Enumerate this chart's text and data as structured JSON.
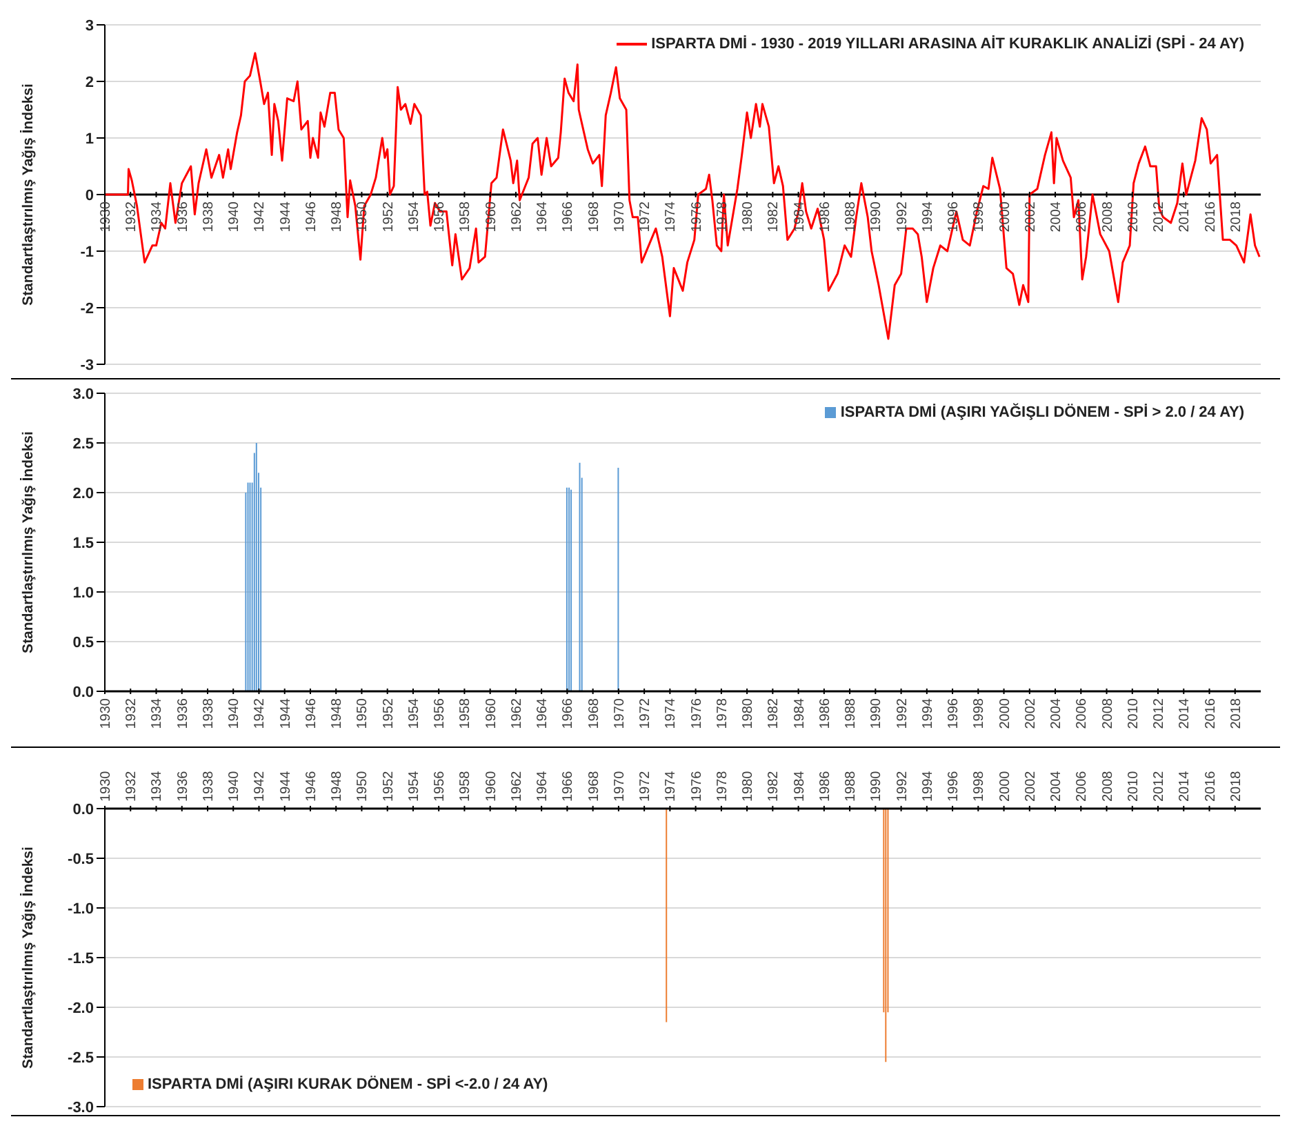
{
  "chart_data": [
    {
      "type": "line",
      "ylabel": "Standartlaştırılmış Yağış İndeksi",
      "legend": "top right",
      "grid": "y",
      "xlim": [
        1930,
        2020
      ],
      "ylim": [
        -3,
        3
      ],
      "yticks": [
        -3,
        -2,
        -1,
        0,
        1,
        2,
        3
      ],
      "xticks": [
        1930,
        1932,
        1934,
        1936,
        1938,
        1940,
        1942,
        1944,
        1946,
        1948,
        1950,
        1952,
        1954,
        1956,
        1958,
        1960,
        1962,
        1964,
        1966,
        1968,
        1970,
        1972,
        1974,
        1976,
        1978,
        1980,
        1982,
        1984,
        1986,
        1988,
        1990,
        1992,
        1994,
        1996,
        1998,
        2000,
        2002,
        2004,
        2006,
        2008,
        2010,
        2012,
        2014,
        2016,
        2018
      ],
      "series": [
        {
          "name": "ISPARTA DMİ - 1930 - 2019 YILLARI ARASINA AİT KURAKLIK ANALİZİ (SPİ - 24 AY)",
          "color": "#ff0000",
          "x": [
            1930,
            1931.8,
            1931.85,
            1932.1,
            1932.5,
            1933.1,
            1933.7,
            1934.0,
            1934.4,
            1934.7,
            1935.1,
            1935.5,
            1936.0,
            1936.7,
            1937.0,
            1937.3,
            1937.9,
            1938.3,
            1938.9,
            1939.2,
            1939.6,
            1939.8,
            1940.3,
            1940.6,
            1940.9,
            1941.3,
            1941.7,
            1942.1,
            1942.4,
            1942.7,
            1943.0,
            1943.2,
            1943.5,
            1943.8,
            1944.2,
            1944.7,
            1945.0,
            1945.3,
            1945.8,
            1946.0,
            1946.2,
            1946.6,
            1946.8,
            1947.1,
            1947.55,
            1947.9,
            1948.2,
            1948.6,
            1948.9,
            1949.1,
            1949.5,
            1949.9,
            1950.2,
            1950.7,
            1951.1,
            1951.6,
            1951.8,
            1952.0,
            1952.2,
            1952.5,
            1952.8,
            1953.05,
            1953.4,
            1953.8,
            1954.1,
            1954.6,
            1954.9,
            1955.1,
            1955.35,
            1955.7,
            1956.1,
            1956.6,
            1957.05,
            1957.3,
            1957.8,
            1958.4,
            1958.9,
            1959.1,
            1959.6,
            1960.1,
            1960.5,
            1961.0,
            1961.6,
            1961.8,
            1962.1,
            1962.3,
            1963.0,
            1963.3,
            1963.7,
            1964.0,
            1964.4,
            1964.75,
            1965.3,
            1965.5,
            1965.8,
            1966.1,
            1966.5,
            1966.8,
            1966.9,
            1967.2,
            1967.6,
            1968.0,
            1968.5,
            1968.7,
            1969.0,
            1969.4,
            1969.8,
            1970.1,
            1970.6,
            1970.85,
            1971.1,
            1971.5,
            1971.8,
            1972.9,
            1973.4,
            1974.0,
            1974.3,
            1975.0,
            1975.35,
            1975.9,
            1976.2,
            1976.8,
            1977.05,
            1977.3,
            1977.65,
            1978.0,
            1978.2,
            1978.5,
            1979.25,
            1979.6,
            1980.0,
            1980.3,
            1980.7,
            1981.0,
            1981.2,
            1981.7,
            1982.1,
            1982.45,
            1982.8,
            1983.15,
            1983.7,
            1984.0,
            1984.3,
            1984.6,
            1985.0,
            1985.5,
            1986.0,
            1986.35,
            1987.05,
            1987.6,
            1988.1,
            1988.5,
            1988.9,
            1989.4,
            1989.7,
            1990.25,
            1991.0,
            1991.5,
            1992.0,
            1992.4,
            1992.9,
            1993.3,
            1993.6,
            1994.0,
            1994.5,
            1995.05,
            1995.6,
            1996.3,
            1996.8,
            1997.35,
            1997.9,
            1998.4,
            1998.8,
            1999.1,
            1999.7,
            2000.2,
            2000.7,
            2001.2,
            2001.5,
            2001.9,
            2002.0,
            2002.6,
            2003.2,
            2003.7,
            2003.9,
            2004.1,
            2004.6,
            2005.2,
            2005.45,
            2005.8,
            2006.1,
            2006.4,
            2006.9,
            2007.5,
            2008.2,
            2008.9,
            2009.25,
            2009.8,
            2010.1,
            2010.5,
            2011.0,
            2011.4,
            2011.85,
            2012.1,
            2012.4,
            2013.0,
            2013.5,
            2013.9,
            2014.2,
            2014.9,
            2015.4,
            2015.8,
            2016.1,
            2016.6,
            2017.05,
            2017.6,
            2018.1,
            2018.7,
            2019.2,
            2019.55,
            2019.9
          ],
          "values": [
            0,
            0,
            0.45,
            0.25,
            -0.2,
            -1.2,
            -0.9,
            -0.9,
            -0.5,
            -0.6,
            0.2,
            -0.5,
            0.2,
            0.5,
            -0.35,
            0.2,
            0.8,
            0.3,
            0.7,
            0.3,
            0.8,
            0.45,
            1.1,
            1.4,
            2.0,
            2.1,
            2.5,
            2.0,
            1.6,
            1.8,
            0.7,
            1.6,
            1.3,
            0.6,
            1.7,
            1.65,
            2.0,
            1.15,
            1.3,
            0.65,
            1.0,
            0.65,
            1.45,
            1.2,
            1.8,
            1.8,
            1.15,
            1.0,
            -0.4,
            0.25,
            -0.2,
            -1.15,
            -0.2,
            0.0,
            0.3,
            1.0,
            0.65,
            0.8,
            0.0,
            0.15,
            1.9,
            1.5,
            1.6,
            1.25,
            1.6,
            1.4,
            0.0,
            0.05,
            -0.55,
            -0.15,
            -0.3,
            -0.3,
            -1.25,
            -0.7,
            -1.5,
            -1.3,
            -0.6,
            -1.2,
            -1.1,
            0.2,
            0.3,
            1.15,
            0.6,
            0.2,
            0.6,
            -0.1,
            0.3,
            0.9,
            1.0,
            0.35,
            1.0,
            0.5,
            0.65,
            1.1,
            2.05,
            1.8,
            1.65,
            2.3,
            1.5,
            1.2,
            0.8,
            0.55,
            0.7,
            0.15,
            1.4,
            1.8,
            2.25,
            1.7,
            1.5,
            -0.1,
            -0.4,
            -0.4,
            -1.2,
            -0.6,
            -1.1,
            -2.15,
            -1.3,
            -1.7,
            -1.2,
            -0.8,
            0.0,
            0.1,
            0.35,
            -0.1,
            -0.9,
            -1.0,
            0.0,
            -0.9,
            0.1,
            0.7,
            1.45,
            1.0,
            1.6,
            1.2,
            1.6,
            1.2,
            0.2,
            0.5,
            0.15,
            -0.8,
            -0.6,
            -0.3,
            0.2,
            -0.3,
            -0.6,
            -0.25,
            -0.8,
            -1.7,
            -1.4,
            -0.9,
            -1.1,
            -0.4,
            0.2,
            -0.4,
            -1.0,
            -1.6,
            -2.55,
            -1.6,
            -1.4,
            -0.6,
            -0.6,
            -0.7,
            -1.1,
            -1.9,
            -1.3,
            -0.9,
            -1.0,
            -0.3,
            -0.8,
            -0.9,
            -0.3,
            0.15,
            0.1,
            0.65,
            0.1,
            -1.3,
            -1.4,
            -1.95,
            -1.6,
            -1.9,
            0.0,
            0.1,
            0.7,
            1.1,
            0.2,
            1.0,
            0.6,
            0.3,
            -0.4,
            -0.1,
            -1.5,
            -1.1,
            0.0,
            -0.7,
            -1.0,
            -1.9,
            -1.2,
            -0.9,
            0.2,
            0.55,
            0.85,
            0.5,
            0.5,
            -0.25,
            -0.4,
            -0.5,
            -0.15,
            0.55,
            0.0,
            0.6,
            1.35,
            1.15,
            0.55,
            0.7,
            -0.8,
            -0.8,
            -0.9,
            -1.2,
            -0.35,
            -0.9,
            -1.1
          ]
        }
      ]
    },
    {
      "type": "bar",
      "ylabel": "Standartlaştırılmış Yağış İndeksi",
      "legend": "top right",
      "grid": "y",
      "xlim": [
        1930,
        2020
      ],
      "ylim": [
        0,
        3
      ],
      "yticks": [
        {
          "value": 0,
          "label": "0.0"
        },
        {
          "value": 0.5,
          "label": "0.5"
        },
        {
          "value": 1,
          "label": "1.0"
        },
        {
          "value": 1.5,
          "label": "1.5"
        },
        {
          "value": 2,
          "label": "2.0"
        },
        {
          "value": 2.5,
          "label": "2.5"
        },
        {
          "value": 3,
          "label": "3.0"
        }
      ],
      "xticks": [
        1930,
        1932,
        1934,
        1936,
        1938,
        1940,
        1942,
        1944,
        1946,
        1948,
        1950,
        1952,
        1954,
        1956,
        1958,
        1960,
        1962,
        1964,
        1966,
        1968,
        1970,
        1972,
        1974,
        1976,
        1978,
        1980,
        1982,
        1984,
        1986,
        1988,
        1990,
        1992,
        1994,
        1996,
        1998,
        2000,
        2002,
        2004,
        2006,
        2008,
        2010,
        2012,
        2014,
        2016,
        2018
      ],
      "series": [
        {
          "name": "ISPARTA DMİ (AŞIRI YAĞIŞLI DÖNEM - SPİ > 2.0 / 24 AY)",
          "color": "#5b9bd5",
          "x": [
            1941.0,
            1941.17,
            1941.33,
            1941.5,
            1941.67,
            1941.83,
            1942.0,
            1942.17,
            1966.0,
            1966.17,
            1966.33,
            1967.0,
            1967.17,
            1970.0
          ],
          "values": [
            2.0,
            2.1,
            2.1,
            2.1,
            2.4,
            2.5,
            2.2,
            2.05,
            2.05,
            2.05,
            2.03,
            2.3,
            2.15,
            2.25
          ]
        }
      ]
    },
    {
      "type": "bar",
      "ylabel": "Standartlaştırılmış Yağış İndeksi",
      "legend": "bottom left",
      "grid": "y",
      "xlim": [
        1930,
        2020
      ],
      "ylim": [
        -3,
        0
      ],
      "yticks": [
        {
          "value": -3,
          "label": "-3.0"
        },
        {
          "value": -2.5,
          "label": "-2.5"
        },
        {
          "value": -2,
          "label": "-2.0"
        },
        {
          "value": -1.5,
          "label": "-1.5"
        },
        {
          "value": -1,
          "label": "-1.0"
        },
        {
          "value": -0.5,
          "label": "-0.5"
        },
        {
          "value": 0,
          "label": "0.0"
        }
      ],
      "xticks": [
        1930,
        1932,
        1934,
        1936,
        1938,
        1940,
        1942,
        1944,
        1946,
        1948,
        1950,
        1952,
        1954,
        1956,
        1958,
        1960,
        1962,
        1964,
        1966,
        1968,
        1970,
        1972,
        1974,
        1976,
        1978,
        1980,
        1982,
        1984,
        1986,
        1988,
        1990,
        1992,
        1994,
        1996,
        1998,
        2000,
        2002,
        2004,
        2006,
        2008,
        2010,
        2012,
        2014,
        2016,
        2018
      ],
      "series": [
        {
          "name": "ISPARTA DMİ (AŞIRI KURAK DÖNEM - SPİ <-2.0  / 24 AY)",
          "color": "#ed7d31",
          "x": [
            1973.75,
            1990.67,
            1990.83,
            1991.0
          ],
          "values": [
            -2.15,
            -2.05,
            -2.55,
            -2.05
          ]
        }
      ]
    }
  ]
}
